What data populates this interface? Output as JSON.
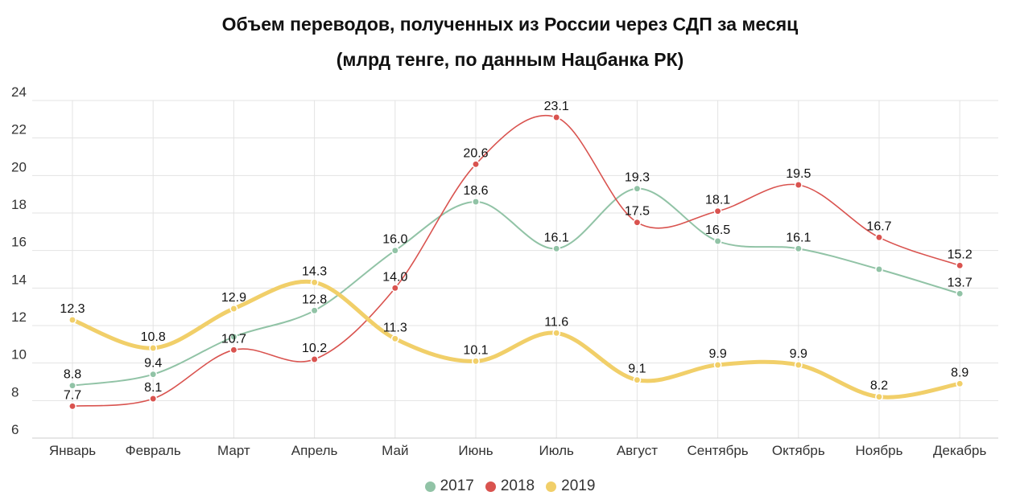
{
  "chart_data": {
    "type": "line",
    "title": "Объем переводов, полученных из России через СДП за месяц",
    "subtitle": "(млрд тенге, по данным Нацбанка РК)",
    "xlabel": "",
    "ylabel": "",
    "categories": [
      "Январь",
      "Февраль",
      "Март",
      "Апрель",
      "Май",
      "Июнь",
      "Июль",
      "Август",
      "Сентябрь",
      "Октябрь",
      "Ноябрь",
      "Декабрь"
    ],
    "ylim": [
      6,
      24
    ],
    "yticks": [
      6,
      8,
      10,
      12,
      14,
      16,
      18,
      20,
      22,
      24
    ],
    "grid": true,
    "legend_position": "bottom",
    "series": [
      {
        "name": "2017",
        "color": "#91c3a6",
        "values": [
          8.8,
          9.4,
          11.4,
          12.8,
          16.0,
          18.6,
          16.1,
          19.3,
          16.5,
          16.1,
          15.0,
          13.7
        ],
        "labels": [
          "8.8",
          "9.4",
          "",
          "12.8",
          "16.0",
          "18.6",
          "16.1",
          "19.3",
          "16.5",
          "16.1",
          "",
          "13.7"
        ]
      },
      {
        "name": "2018",
        "color": "#d9534f",
        "values": [
          7.7,
          8.1,
          10.7,
          10.2,
          14.0,
          20.6,
          23.1,
          17.5,
          18.1,
          19.5,
          16.7,
          15.2
        ],
        "labels": [
          "7.7",
          "8.1",
          "10.7",
          "10.2",
          "14.0",
          "20.6",
          "23.1",
          "17.5",
          "18.1",
          "19.5",
          "16.7",
          "15.2"
        ]
      },
      {
        "name": "2019",
        "color": "#f1cf69",
        "values": [
          12.3,
          10.8,
          12.9,
          14.3,
          11.3,
          10.1,
          11.6,
          9.1,
          9.9,
          9.9,
          8.2,
          8.9
        ],
        "labels": [
          "12.3",
          "10.8",
          "12.9",
          "14.3",
          "11.3",
          "10.1",
          "11.6",
          "9.1",
          "9.9",
          "9.9",
          "8.2",
          "8.9"
        ]
      }
    ]
  }
}
